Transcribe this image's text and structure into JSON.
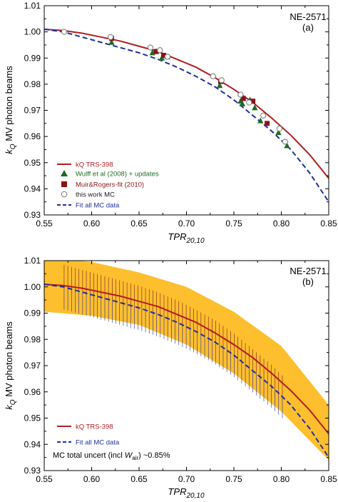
{
  "chart_data": [
    {
      "type": "line",
      "panel_tag": "(a)",
      "detector": "NE-2571",
      "xlabel_main": "TPR",
      "xlabel_sub": "20,10",
      "ylabel_main": "k",
      "ylabel_sub": "Q",
      "ylabel_rest": " MV photon beams",
      "xlim": [
        0.55,
        0.85
      ],
      "ylim": [
        0.93,
        1.01
      ],
      "x_ticks": [
        "0.55",
        "0.60",
        "0.65",
        "0.70",
        "0.75",
        "0.80",
        "0.85"
      ],
      "y_ticks": [
        "0.93",
        "0.94",
        "0.95",
        "0.96",
        "0.97",
        "0.98",
        "0.99",
        "1.00",
        "1.01"
      ],
      "legend_position": "bottom-left",
      "legend": {
        "trs": "kQ TRS-398",
        "wulff": "Wulff et al (2008) + updates",
        "muir": "Muir&Rogers-fit (2010)",
        "mc": "this work MC",
        "fit": "Fit all MC data"
      },
      "colors": {
        "trs": "#b01c22",
        "wulff": "#1e6b22",
        "muir": "#8b1218",
        "mc": "#777777",
        "fit": "#1f2fa0"
      },
      "series": [
        {
          "name": "kQ TRS-398",
          "style": "solid-line",
          "x": [
            0.55,
            0.57,
            0.59,
            0.61,
            0.63,
            0.65,
            0.67,
            0.69,
            0.71,
            0.73,
            0.75,
            0.77,
            0.79,
            0.81,
            0.83,
            0.85
          ],
          "y": [
            1.001,
            1.0005,
            0.9995,
            0.998,
            0.9965,
            0.9945,
            0.9925,
            0.9895,
            0.9865,
            0.9825,
            0.978,
            0.973,
            0.967,
            0.9605,
            0.953,
            0.944
          ]
        },
        {
          "name": "Fit all MC data",
          "style": "dashed-line",
          "x": [
            0.55,
            0.57,
            0.59,
            0.61,
            0.63,
            0.65,
            0.67,
            0.69,
            0.71,
            0.73,
            0.75,
            0.77,
            0.79,
            0.81,
            0.83,
            0.85
          ],
          "y": [
            1.001,
            1.0,
            0.998,
            0.996,
            0.994,
            0.992,
            0.9895,
            0.9865,
            0.983,
            0.979,
            0.974,
            0.968,
            0.962,
            0.955,
            0.946,
            0.935
          ]
        },
        {
          "name": "Wulff et al (2008) + updates",
          "style": "triangle",
          "x": [
            0.621,
            0.664,
            0.668,
            0.674,
            0.68,
            0.735,
            0.757,
            0.759,
            0.767,
            0.772,
            0.778,
            0.797,
            0.806
          ],
          "y": [
            0.996,
            0.992,
            0.9925,
            0.99,
            0.9905,
            0.9795,
            0.9735,
            0.9725,
            0.974,
            0.971,
            0.966,
            0.9615,
            0.9565
          ]
        },
        {
          "name": "Muir&Rogers-fit (2010)",
          "style": "square",
          "x": [
            0.621,
            0.668,
            0.676,
            0.736,
            0.76,
            0.77,
            0.785
          ],
          "y": [
            0.9975,
            0.9925,
            0.991,
            0.981,
            0.9745,
            0.9735,
            0.965
          ]
        },
        {
          "name": "this work MC",
          "style": "circle",
          "x": [
            0.571,
            0.62,
            0.662,
            0.672,
            0.68,
            0.728,
            0.737,
            0.757,
            0.766,
            0.781,
            0.798,
            0.804
          ],
          "y": [
            1.0,
            0.998,
            0.994,
            0.993,
            0.9905,
            0.983,
            0.9815,
            0.976,
            0.973,
            0.968,
            0.963,
            0.958
          ]
        }
      ]
    },
    {
      "type": "line",
      "panel_tag": "(b)",
      "detector": "NE-2571",
      "xlabel_main": "TPR",
      "xlabel_sub": "20,10",
      "ylabel_main": "k",
      "ylabel_sub": "Q",
      "ylabel_rest": " MV photon beams",
      "xlim": [
        0.55,
        0.85
      ],
      "ylim": [
        0.93,
        1.01
      ],
      "x_ticks": [
        "0.55",
        "0.60",
        "0.65",
        "0.70",
        "0.75",
        "0.80",
        "0.85"
      ],
      "y_ticks": [
        "0.93",
        "0.94",
        "0.95",
        "0.96",
        "0.97",
        "0.98",
        "0.99",
        "1.00",
        "1.01"
      ],
      "legend_position": "bottom-left",
      "legend": {
        "trs": "kQ TRS-398",
        "fit": "Fit all MC data"
      },
      "note_main": "MC total uncert (incl ",
      "note_w": "W",
      "note_sub": "air",
      "note_end": ") ~0.85%",
      "colors": {
        "trs": "#b01c22",
        "fit": "#1f2fa0",
        "band": "#fdbf2d",
        "errbar_upper": "#7a1a2a",
        "errbar_lower": "#2c2a9a"
      },
      "uncertainty_band": {
        "x": [
          0.55,
          0.6,
          0.65,
          0.7,
          0.75,
          0.8,
          0.85
        ],
        "lower": [
          0.9905,
          0.989,
          0.9855,
          0.978,
          0.967,
          0.9525,
          0.934
        ],
        "upper": [
          1.0115,
          1.0095,
          1.0055,
          1.0,
          0.9905,
          0.9775,
          0.955
        ]
      },
      "error_bars": {
        "x_start": 0.571,
        "x_end": 0.804,
        "step": 0.0039,
        "half_width_fraction": 0.0085
      },
      "series": [
        {
          "name": "kQ TRS-398",
          "style": "solid-line",
          "x": [
            0.55,
            0.57,
            0.59,
            0.61,
            0.63,
            0.65,
            0.67,
            0.69,
            0.71,
            0.73,
            0.75,
            0.77,
            0.79,
            0.81,
            0.83,
            0.85
          ],
          "y": [
            1.001,
            1.0005,
            0.9995,
            0.998,
            0.9965,
            0.9945,
            0.9925,
            0.9895,
            0.9865,
            0.9825,
            0.978,
            0.973,
            0.967,
            0.9605,
            0.953,
            0.944
          ]
        },
        {
          "name": "Fit all MC data",
          "style": "dashed-line",
          "x": [
            0.55,
            0.57,
            0.59,
            0.61,
            0.63,
            0.65,
            0.67,
            0.69,
            0.71,
            0.73,
            0.75,
            0.77,
            0.79,
            0.81,
            0.83,
            0.85
          ],
          "y": [
            1.001,
            1.0,
            0.998,
            0.996,
            0.994,
            0.992,
            0.9895,
            0.9865,
            0.983,
            0.979,
            0.974,
            0.968,
            0.962,
            0.955,
            0.946,
            0.935
          ]
        }
      ]
    }
  ]
}
